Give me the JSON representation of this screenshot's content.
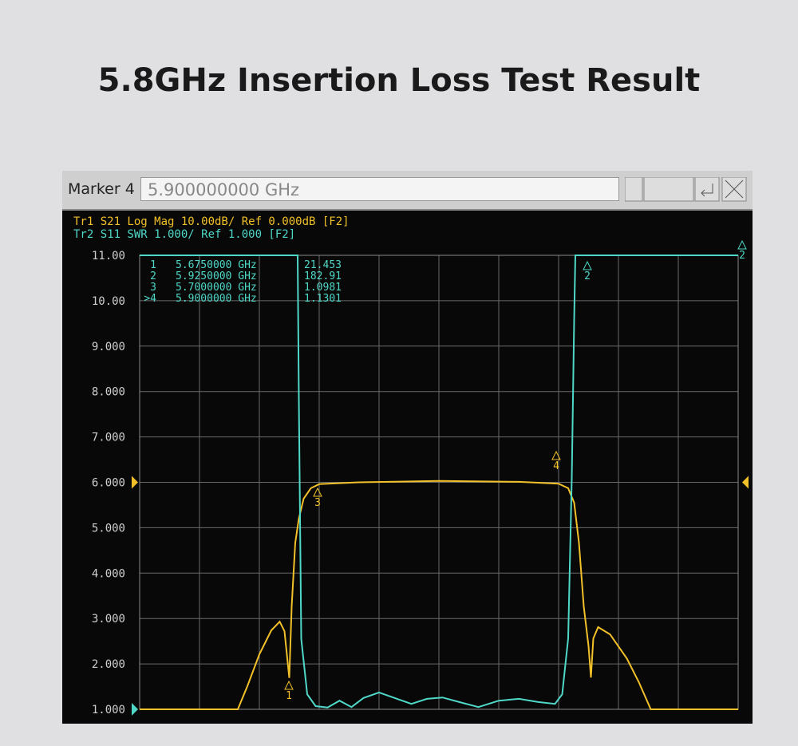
{
  "title": "5.8GHz Insertion Loss Test Result",
  "toolbar": {
    "label": "Marker 4",
    "input": "5.900000000 GHz"
  },
  "chart_data": {
    "type": "line",
    "header_lines": [
      "Tr1 S21 Log Mag 10.00dB/ Ref 0.000dB [F2]",
      "Tr2 S11 SWR 1.000/ Ref 1.000 [F2]"
    ],
    "markers": [
      {
        "label": "1",
        "frequency": "5.6750000 GHz",
        "reading": "21.453"
      },
      {
        "label": "2",
        "frequency": "5.9250000 GHz",
        "reading": "182.91"
      },
      {
        "label": "3",
        "frequency": "5.7000000 GHz",
        "reading": "1.0981"
      },
      {
        "label": ">4",
        "frequency": "5.9000000 GHz",
        "reading": "1.1301"
      }
    ],
    "trace_marker_labels": [
      "1",
      "2",
      "3",
      "4",
      "2"
    ],
    "xlim": [
      5.55,
      6.05
    ],
    "ylim": [
      1,
      11
    ],
    "yticks": [
      {
        "value": 11,
        "label": "11.00"
      },
      {
        "value": 10,
        "label": "10.00"
      },
      {
        "value": 9,
        "label": "9.000"
      },
      {
        "value": 8,
        "label": "8.000"
      },
      {
        "value": 7,
        "label": "7.000"
      },
      {
        "value": 6,
        "label": "6.000"
      },
      {
        "value": 5,
        "label": "5.000"
      },
      {
        "value": 4,
        "label": "4.000"
      },
      {
        "value": 3,
        "label": "3.000"
      },
      {
        "value": 2,
        "label": "2.000"
      },
      {
        "value": 1,
        "label": "1.000"
      }
    ],
    "grid": true,
    "series": [
      {
        "name": "S21",
        "color": "#f2c028",
        "x": [
          5.55,
          5.632,
          5.64,
          5.65,
          5.66,
          5.667,
          5.671,
          5.675,
          5.677,
          5.68,
          5.683,
          5.687,
          5.693,
          5.7,
          5.733,
          5.8,
          5.867,
          5.9,
          5.908,
          5.913,
          5.917,
          5.921,
          5.925,
          5.927,
          5.929,
          5.933,
          5.943,
          5.957,
          5.967,
          5.977,
          6.05
        ],
        "values": [
          1.0,
          1.0,
          1.51,
          2.21,
          2.74,
          2.93,
          2.72,
          1.69,
          3.26,
          4.67,
          5.2,
          5.64,
          5.87,
          5.96,
          6.0,
          6.03,
          6.01,
          5.97,
          5.87,
          5.55,
          4.67,
          3.27,
          2.39,
          1.7,
          2.56,
          2.81,
          2.65,
          2.12,
          1.6,
          1.0,
          1.0
        ]
      },
      {
        "name": "S11",
        "color": "#4fd8c8",
        "x": [
          5.55,
          5.682,
          5.683,
          5.685,
          5.69,
          5.697,
          5.707,
          5.717,
          5.727,
          5.737,
          5.75,
          5.763,
          5.777,
          5.79,
          5.803,
          5.817,
          5.833,
          5.85,
          5.867,
          5.883,
          5.897,
          5.903,
          5.908,
          5.911,
          5.913,
          5.914,
          6.05
        ],
        "values": [
          11.0,
          11.0,
          7.84,
          2.55,
          1.33,
          1.07,
          1.04,
          1.19,
          1.05,
          1.25,
          1.37,
          1.25,
          1.12,
          1.23,
          1.26,
          1.16,
          1.05,
          1.19,
          1.23,
          1.16,
          1.12,
          1.33,
          2.56,
          6.08,
          9.59,
          11.0,
          11.0
        ]
      }
    ]
  }
}
